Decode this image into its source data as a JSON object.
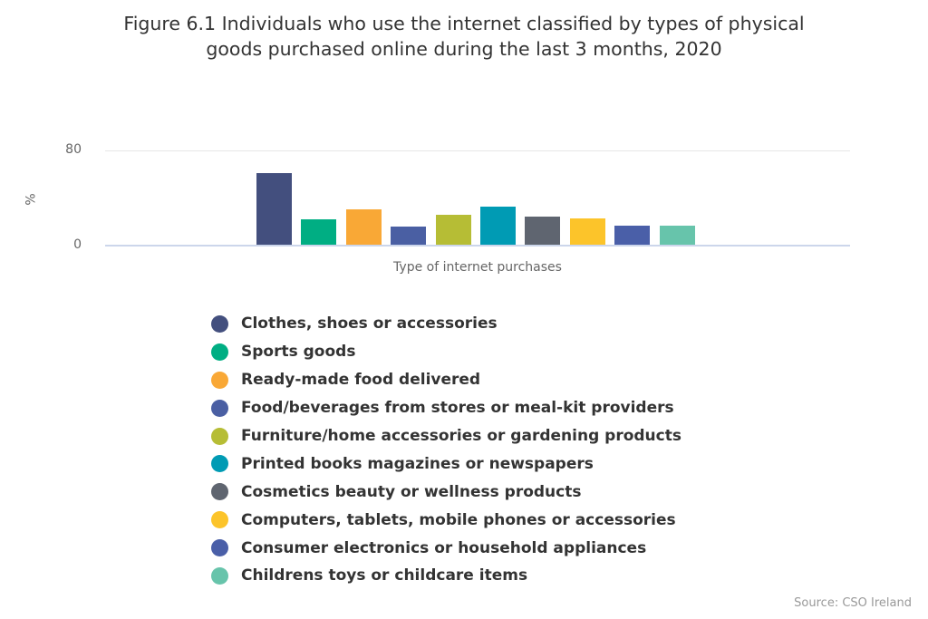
{
  "chart_data": {
    "type": "bar",
    "title": "Figure 6.1 Individuals who use the internet classified by types of physical goods purchased online during the last 3 months, 2020",
    "title_lines": [
      "Figure 6.1 Individuals who use the internet classified by types of physical",
      "goods purchased online during the last 3 months, 2020"
    ],
    "xlabel": "Type of internet purchases",
    "ylabel": "%",
    "ylim": [
      0,
      80
    ],
    "yticks": [
      "0",
      "80"
    ],
    "grid": true,
    "legend_position": "bottom",
    "categories": [
      "Type of internet purchases"
    ],
    "series": [
      {
        "name": "Clothes, shoes or accessories",
        "values": [
          61
        ],
        "color": "#434f7e"
      },
      {
        "name": "Sports goods",
        "values": [
          22
        ],
        "color": "#00ae83"
      },
      {
        "name": "Ready-made food delivered",
        "values": [
          31
        ],
        "color": "#f9a836"
      },
      {
        "name": "Food/beverages from stores or meal-kit providers",
        "values": [
          16
        ],
        "color": "#4a5fa3"
      },
      {
        "name": "Furniture/home accessories or gardening products",
        "values": [
          26
        ],
        "color": "#b6bd35"
      },
      {
        "name": "Printed books magazines or newspapers",
        "values": [
          33
        ],
        "color": "#009bb4"
      },
      {
        "name": "Cosmetics beauty or wellness products",
        "values": [
          25
        ],
        "color": "#5f6570"
      },
      {
        "name": "Computers, tablets, mobile phones or accessories",
        "values": [
          23
        ],
        "color": "#fcc42a"
      },
      {
        "name": "Consumer electronics or household appliances",
        "values": [
          17
        ],
        "color": "#4a5fa8"
      },
      {
        "name": "Childrens toys or childcare items",
        "values": [
          17
        ],
        "color": "#67c4ab"
      }
    ]
  },
  "source": "Source: CSO Ireland"
}
